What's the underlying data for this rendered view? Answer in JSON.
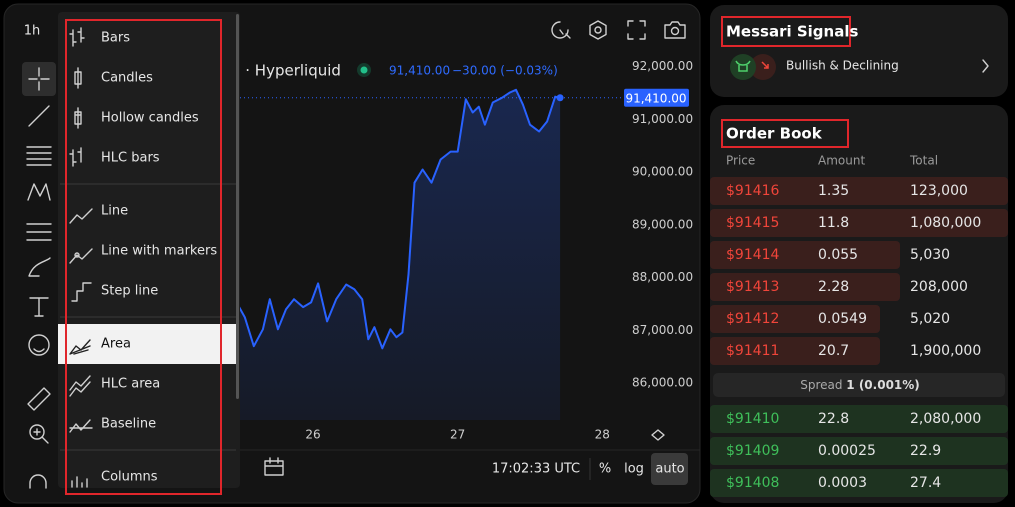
{
  "toolbar": {
    "interval": "1h"
  },
  "chart_type_menu": {
    "groups": [
      [
        "Bars",
        "Candles",
        "Hollow candles",
        "HLC bars"
      ],
      [
        "Line",
        "Line with markers",
        "Step line"
      ],
      [
        "Area",
        "HLC area",
        "Baseline"
      ],
      [
        "Columns"
      ]
    ]
  },
  "header": {
    "symbol": "n · Hyperliquid",
    "price": "91,410.00",
    "change": "−30.00 (−0.03%)"
  },
  "chart": {
    "type": "area",
    "color": "#2962ff",
    "x": [
      25.479,
      25.528,
      25.59,
      25.653,
      25.701,
      25.757,
      25.813,
      25.868,
      25.931,
      25.986,
      26.035,
      26.097,
      26.16,
      26.229,
      26.285,
      26.34,
      26.382,
      26.424,
      26.479,
      26.535,
      26.576,
      26.618,
      26.66,
      26.701,
      26.757,
      26.819,
      26.882,
      26.951,
      27,
      27.056,
      27.104,
      27.146,
      27.188,
      27.243,
      27.306,
      27.361,
      27.403,
      27.451,
      27.5,
      27.563,
      27.618,
      27.674,
      27.708
    ],
    "values": [
      87490,
      87250,
      86700,
      87020,
      87590,
      87020,
      87400,
      87590,
      87440,
      87530,
      87890,
      87170,
      87590,
      87870,
      87780,
      87590,
      86830,
      87060,
      86660,
      87020,
      86870,
      86960,
      88060,
      89800,
      90050,
      89800,
      90240,
      90390,
      90390,
      91380,
      91130,
      91240,
      90900,
      91320,
      91410,
      91510,
      91560,
      91280,
      90900,
      90770,
      90960,
      91430,
      91410
    ],
    "xlim": [
      24.25,
      28.15
    ],
    "xticks": [
      26,
      27,
      28
    ],
    "ylim": [
      85300,
      92600
    ],
    "yticks": [
      {
        "value": 86000,
        "label": "86,000.00"
      },
      {
        "value": 87000,
        "label": "87,000.00"
      },
      {
        "value": 88000,
        "label": "88,000.00"
      },
      {
        "value": 89000,
        "label": "89,000.00"
      },
      {
        "value": 90000,
        "label": "90,000.00"
      },
      {
        "value": 91000,
        "label": "91,000.00"
      },
      {
        "value": 92000,
        "label": "92,000.00"
      }
    ],
    "price_line": {
      "value": 91410,
      "label": "91,410.00"
    }
  },
  "bottom_bar": {
    "time": "17:02:33 UTC",
    "percent": "%",
    "log": "log",
    "auto": "auto"
  },
  "signals": {
    "title": "Messari Signals",
    "signal": "Bullish & Declining"
  },
  "order_book": {
    "title": "Order Book",
    "columns": [
      "Price",
      "Amount",
      "Total"
    ],
    "asks": [
      [
        "$91416",
        "1.35",
        "123,000"
      ],
      [
        "$91415",
        "11.8",
        "1,080,000"
      ],
      [
        "$91414",
        "0.055",
        "5,030"
      ],
      [
        "$91413",
        "2.28",
        "208,000"
      ],
      [
        "$91412",
        "0.0549",
        "5,020"
      ],
      [
        "$91411",
        "20.7",
        "1,900,000"
      ]
    ],
    "spread": {
      "label": "Spread",
      "value": "1 (0.001%)"
    },
    "bids": [
      [
        "$91410",
        "22.8",
        "2,080,000"
      ],
      [
        "$91409",
        "0.00025",
        "22.9"
      ],
      [
        "$91408",
        "0.0003",
        "27.4"
      ]
    ]
  }
}
